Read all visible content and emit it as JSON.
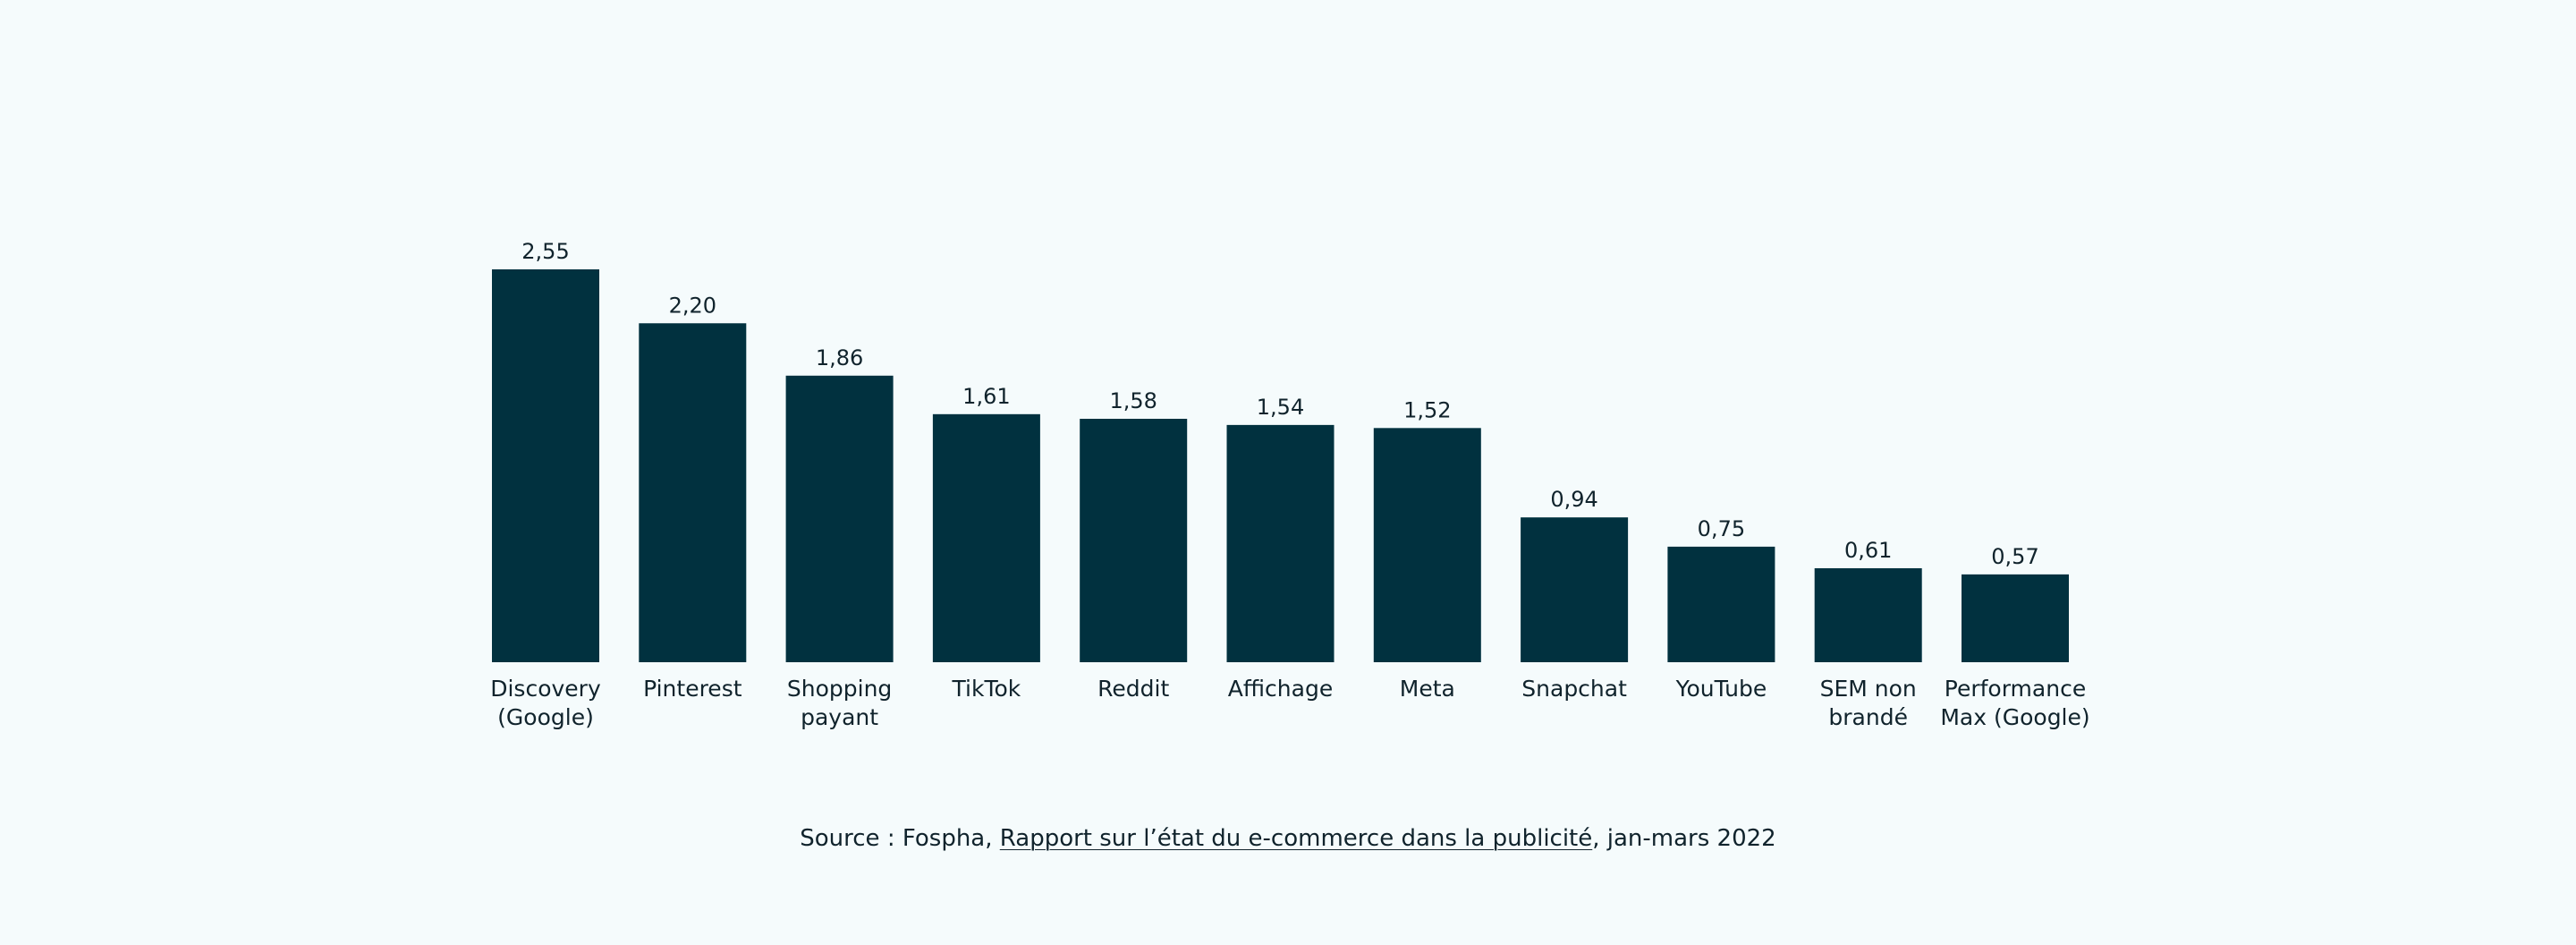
{
  "colors": {
    "background": "#F5FBFC",
    "bar": "#01313F",
    "text": "#10232C"
  },
  "chart_data": {
    "type": "bar",
    "title": "",
    "xlabel": "",
    "ylabel": "",
    "ylim": [
      0,
      2.55
    ],
    "grid": false,
    "categories": [
      [
        "Discovery",
        "(Google)"
      ],
      [
        "Pinterest"
      ],
      [
        "Shopping",
        "payant"
      ],
      [
        "TikTok"
      ],
      [
        "Reddit"
      ],
      [
        "Affichage"
      ],
      [
        "Meta"
      ],
      [
        "Snapchat"
      ],
      [
        "YouTube"
      ],
      [
        "SEM non",
        "brandé"
      ],
      [
        "Performance",
        "Max (Google)"
      ]
    ],
    "values": [
      2.55,
      2.2,
      1.86,
      1.61,
      1.58,
      1.54,
      1.52,
      0.94,
      0.75,
      0.61,
      0.57
    ],
    "value_labels": [
      "2,55",
      "2,20",
      "1,86",
      "1,61",
      "1,58",
      "1,54",
      "1,52",
      "0,94",
      "0,75",
      "0,61",
      "0,57"
    ]
  },
  "source": {
    "prefix": "Source : Fospha, ",
    "link_text": "Rapport sur l’état du e-commerce dans la publicité",
    "suffix": ", jan-mars 2022"
  }
}
